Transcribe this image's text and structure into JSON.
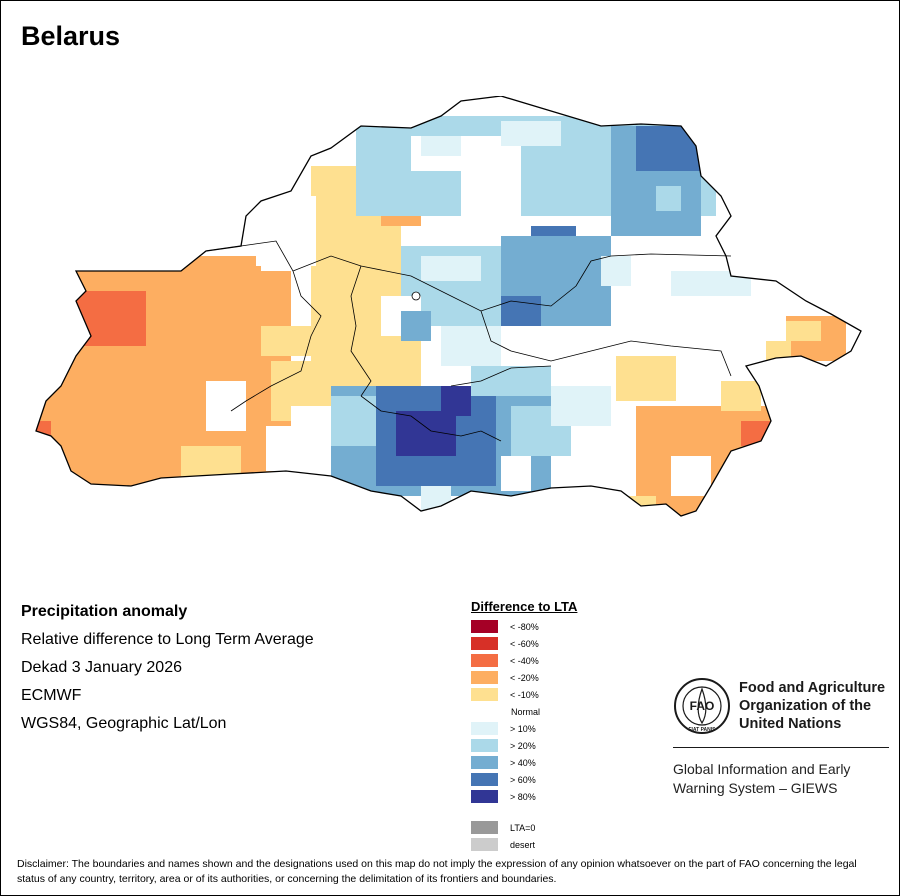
{
  "title": "Belarus",
  "info": {
    "heading": "Precipitation anomaly",
    "subtitle": "Relative difference to Long Term Average",
    "period": "Dekad 3 January 2026",
    "source": "ECMWF",
    "projection": "WGS84, Geographic Lat/Lon"
  },
  "legend": {
    "title": "Difference to LTA",
    "classes": [
      {
        "label": "< -80%",
        "color": "#a50026"
      },
      {
        "label": "< -60%",
        "color": "#d73027"
      },
      {
        "label": "< -40%",
        "color": "#f46d43"
      },
      {
        "label": "< -20%",
        "color": "#fdae61"
      },
      {
        "label": "< -10%",
        "color": "#fee090"
      },
      {
        "label": "Normal",
        "color": "#ffffff"
      },
      {
        "label": "> 10%",
        "color": "#e0f3f8"
      },
      {
        "label": "> 20%",
        "color": "#abd9e9"
      },
      {
        "label": "> 40%",
        "color": "#74add1"
      },
      {
        "label": "> 60%",
        "color": "#4575b4"
      },
      {
        "label": "> 80%",
        "color": "#313695"
      }
    ],
    "extra": [
      {
        "label": "LTA=0",
        "color": "#999999"
      },
      {
        "label": "desert",
        "color": "#cccccc"
      }
    ]
  },
  "org": {
    "name_lines": [
      "Food and Agriculture",
      "Organization of the",
      "United Nations"
    ],
    "logo_text": "FAO",
    "logo_ring": "FIAT PANIS",
    "system_lines": [
      "Global Information and Early",
      "Warning System – GIEWS"
    ]
  },
  "disclaimer": "Disclaimer: The boundaries and names shown and the designations used on this map do not imply the expression of any opinion whatsoever on the part of FAO concerning the legal status of any country, territory, area or of its authorities, or concerning the delimitation of its frontiers and boundaries."
}
